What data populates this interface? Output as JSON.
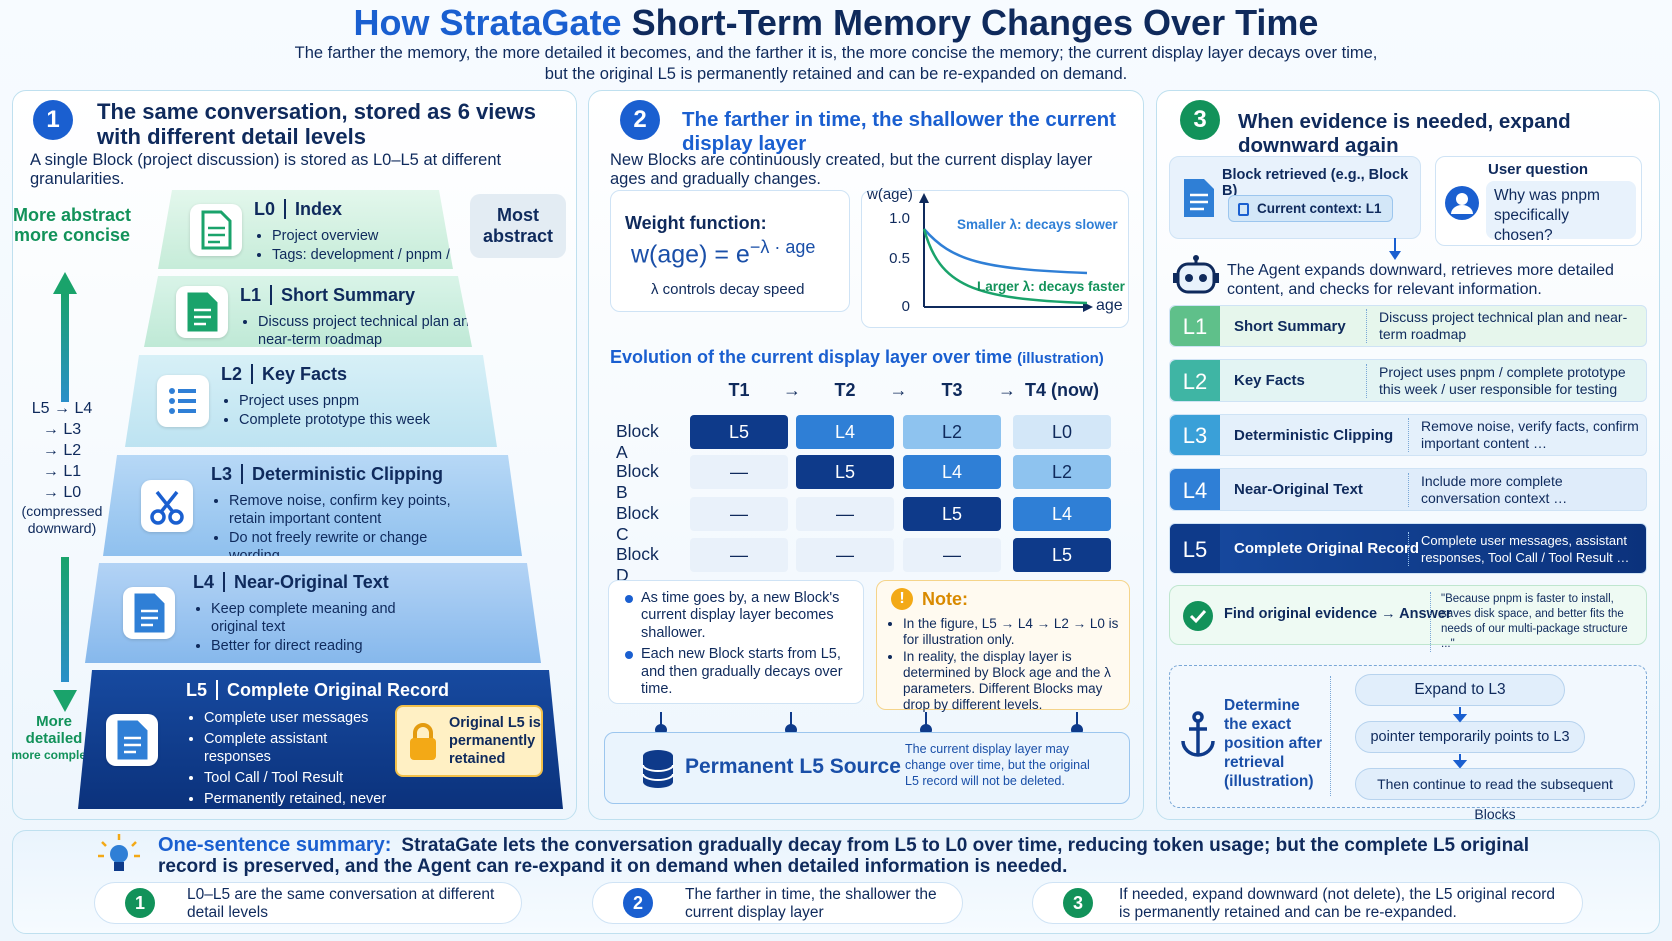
{
  "header": {
    "title_brand": "How StrataGate",
    "title_rest": "Short-Term Memory Changes Over Time",
    "subtitle": [
      "The farther the memory, the more detailed it becomes, and the farther it is, the more concise the memory; the current display layer decays over time,",
      "but the original L5 is permanently retained and can be re-expanded on demand."
    ]
  },
  "panel1": {
    "number": "1",
    "heading": "The same conversation, stored as 6 views with different detail levels",
    "intro": "A single Block (project discussion) is stored as L0–L5 at different granularities.",
    "top_label": "More abstract more concise",
    "side_label": [
      "L5 → L4",
      "→ L3",
      "→ L2",
      "→ L1",
      "→ L0",
      "(compressed downward)"
    ],
    "bottom_label": [
      "More",
      "detailed",
      "more complete"
    ],
    "callout": "Most abstract",
    "layers": [
      {
        "level": "L0",
        "title": "Index",
        "bullets": [
          "Project overview",
          "Tags: development / pnpm / testing"
        ]
      },
      {
        "level": "L1",
        "title": "Short Summary",
        "bullets": [
          "Discuss project technical plan and near-term roadmap"
        ]
      },
      {
        "level": "L2",
        "title": "Key Facts",
        "bullets": [
          "Project uses pnpm",
          "Complete prototype this week"
        ]
      },
      {
        "level": "L3",
        "title": "Deterministic Clipping",
        "bullets": [
          "Remove noise, confirm key points, retain important content",
          "Do not freely rewrite or change wording"
        ]
      },
      {
        "level": "L4",
        "title": "Near-Original Text",
        "bullets": [
          "Keep complete meaning and original text",
          "Better for direct reading"
        ]
      },
      {
        "level": "L5",
        "title": "Complete Original Record",
        "bullets": [
          "Complete user messages",
          "Complete assistant responses",
          "Tool Call / Tool Result",
          "Permanently retained, never overwritten"
        ]
      }
    ],
    "badge": "Original L5 is permanently retained"
  },
  "panel2": {
    "number": "2",
    "heading": "The farther in time, the shallower the current display layer",
    "intro": "New Blocks are continuously created, but the current display layer ages and gradually changes.",
    "weight_label": "Weight function:",
    "formula_base": "w(age) = e",
    "formula_exp": "−λ · age",
    "formula_note": "λ controls decay speed",
    "graph": {
      "y_label": "w(age)",
      "x_label": "age",
      "yticks": [
        "1.0",
        "0.5",
        "0"
      ],
      "slow_label": "Smaller λ: decays slower",
      "fast_label": "Larger λ: decays faster"
    },
    "table": {
      "title": "Evolution of the current display layer over time",
      "title_note": "(illustration)",
      "arrow": "→",
      "columns": [
        "T1",
        "T2",
        "T3",
        "T4 (now)"
      ],
      "rows": [
        {
          "label": "Block A",
          "cells": [
            "L5",
            "L4",
            "L2",
            "L0"
          ]
        },
        {
          "label": "Block B",
          "cells": [
            "—",
            "L5",
            "L4",
            "L2"
          ]
        },
        {
          "label": "Block C",
          "cells": [
            "—",
            "—",
            "L5",
            "L4"
          ]
        },
        {
          "label": "Block D",
          "cells": [
            "—",
            "—",
            "—",
            "L5"
          ]
        }
      ],
      "level_colors": {
        "L5": "#0e3a8a",
        "L4": "#2f7fd6",
        "L2": "#8ec3ef",
        "L0": "#d3e7f8",
        "—": "#e9f1fa"
      }
    },
    "bullets": [
      "As time goes by, a new Block's current display layer becomes shallower.",
      "Each new Block starts from L5, and then gradually decays over time."
    ],
    "note_title": "Note:",
    "note_bullets": [
      "In the figure, L5 → L4 → L2 → L0 is for illustration only.",
      "In reality, the display layer is determined by Block age and the λ parameters. Different Blocks may drop by different levels."
    ],
    "source_title": "Permanent L5 Source",
    "source_note": "The current display layer may change over time, but the original L5 record will not be deleted."
  },
  "panel3": {
    "number": "3",
    "heading": "When evidence is needed, expand downward again",
    "retrieved": "Block retrieved (e.g., Block B)",
    "context": "Current context: L1",
    "question_title": "User question",
    "question": "Why was pnpm specifically chosen?",
    "agent_text": "The Agent expands downward, retrieves more detailed content, and checks for relevant information.",
    "rows": [
      {
        "level": "L1",
        "title": "Short Summary",
        "desc": "Discuss project technical plan and near-term roadmap"
      },
      {
        "level": "L2",
        "title": "Key Facts",
        "desc": "Project uses pnpm / complete prototype this week / user responsible for testing"
      },
      {
        "level": "L3",
        "title": "Deterministic Clipping",
        "desc": "Remove noise, verify facts, confirm important content …"
      },
      {
        "level": "L4",
        "title": "Near-Original Text",
        "desc": "Include more complete conversation context …"
      },
      {
        "level": "L5",
        "title": "Complete Original Record",
        "desc": "Complete user messages, assistant responses, Tool Call / Tool Result …"
      }
    ],
    "evidence_label": "Find original evidence",
    "evidence_arrow": "→",
    "evidence_answer": "Answer",
    "evidence_quote": "\"Because pnpm is faster to install, saves disk space, and better fits the needs of our multi-package structure ...\"",
    "position_title": "Determine the exact position after retrieval (illustration)",
    "steps": [
      "Expand to L3",
      "pointer temporarily points to L3",
      "Then continue to read the subsequent Blocks"
    ]
  },
  "footer": {
    "label": "One-sentence summary:",
    "text": "StrataGate lets the conversation gradually decay from L5 to L0 over time, reducing token usage; but the complete L5 original record is preserved, and the Agent can re-expand it on demand when detailed information is needed.",
    "points": [
      {
        "number": "1",
        "text": "L0–L5 are the same conversation at different detail levels"
      },
      {
        "number": "2",
        "text": "The farther in time, the shallower the current display layer"
      },
      {
        "number": "3",
        "text": "If needed, expand downward (not delete), the L5 original record is permanently retained and can be re-expanded."
      }
    ]
  }
}
